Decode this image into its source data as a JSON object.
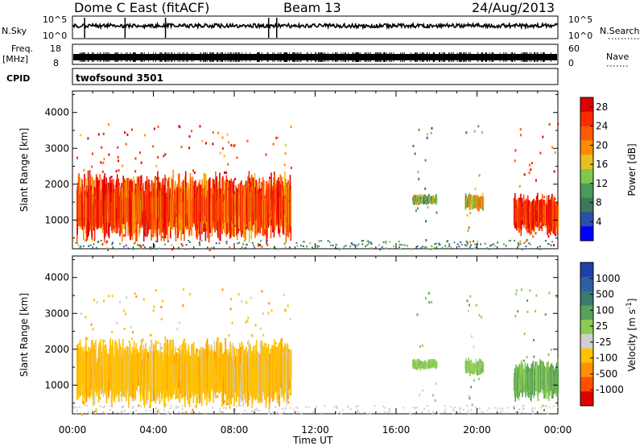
{
  "header": {
    "title": "Dome C East (fitACF)",
    "beam": "Beam 13",
    "date": "24/Aug/2013"
  },
  "top_panels": {
    "nsky_label": "N.Sky",
    "nsky_ticks": [
      "10^5",
      "10^0"
    ],
    "nsearch_label": "N.Search",
    "nsearch_ticks": [
      "10^5",
      "10^0"
    ],
    "freq_label": "Freq.",
    "freq_unit": "[MHz]",
    "freq_ticks": [
      "18",
      "8"
    ],
    "nave_label": "Nave",
    "nave_ticks": [
      "60",
      "0"
    ],
    "cpid_label": "CPID",
    "cpid_value": "twofsound 3501"
  },
  "colors": {
    "power_scale": [
      "#0000ff",
      "#2b4fa8",
      "#3a7a5a",
      "#4a9a5a",
      "#7ec850",
      "#e8c020",
      "#ff8c00",
      "#ff5a00",
      "#ff2a00",
      "#e00000"
    ],
    "velocity_scale": [
      "#1f3fa8",
      "#2e5fa0",
      "#3a7a6e",
      "#5aa05a",
      "#8ccc50",
      "#cfcfcf",
      "#ffc000",
      "#ff9000",
      "#ff5000",
      "#e00000"
    ]
  },
  "chart_data": [
    {
      "type": "heatmap",
      "title": "Power",
      "xlabel": "",
      "ylabel": "Slant Range [km]",
      "x_ticks": [
        "00:00",
        "04:00",
        "08:00",
        "12:00",
        "16:00",
        "20:00",
        "00:00"
      ],
      "y_ticks": [
        "1000",
        "2000",
        "3000",
        "4000"
      ],
      "ylim": [
        200,
        4600
      ],
      "colorbar_label": "Power [dB]",
      "colorbar_ticks": [
        "4",
        "8",
        "12",
        "16",
        "20",
        "24",
        "28"
      ],
      "colorbar_range": [
        0,
        30
      ],
      "echo_regions": [
        {
          "x": [
            0.2,
            10.8
          ],
          "y": [
            600,
            2100
          ],
          "value": 24
        },
        {
          "x": [
            16.8,
            18.0
          ],
          "y": [
            1450,
            1700
          ],
          "value": 12
        },
        {
          "x": [
            19.4,
            20.3
          ],
          "y": [
            1300,
            1700
          ],
          "value": 16
        },
        {
          "x": [
            21.8,
            24.0
          ],
          "y": [
            700,
            1600
          ],
          "value": 26
        }
      ]
    },
    {
      "type": "heatmap",
      "title": "Velocity",
      "xlabel": "Time UT",
      "ylabel": "Slant Range [km]",
      "x_ticks": [
        "00:00",
        "04:00",
        "08:00",
        "12:00",
        "16:00",
        "20:00",
        "00:00"
      ],
      "y_ticks": [
        "1000",
        "2000",
        "3000",
        "4000"
      ],
      "ylim": [
        200,
        4600
      ],
      "colorbar_label": "Velocity [m s^-1]",
      "colorbar_ticks": [
        "1000",
        "500",
        "100",
        "25",
        "-25",
        "-100",
        "-500",
        "-1000"
      ],
      "colorbar_range": [
        -1000,
        1000
      ],
      "echo_regions": [
        {
          "x": [
            0.2,
            10.8
          ],
          "y": [
            600,
            2100
          ],
          "value": -300
        },
        {
          "x": [
            16.8,
            18.0
          ],
          "y": [
            1450,
            1700
          ],
          "value": 100
        },
        {
          "x": [
            19.4,
            20.3
          ],
          "y": [
            1300,
            1700
          ],
          "value": 100
        },
        {
          "x": [
            21.8,
            24.0
          ],
          "y": [
            700,
            1600
          ],
          "value": 200
        }
      ]
    }
  ]
}
